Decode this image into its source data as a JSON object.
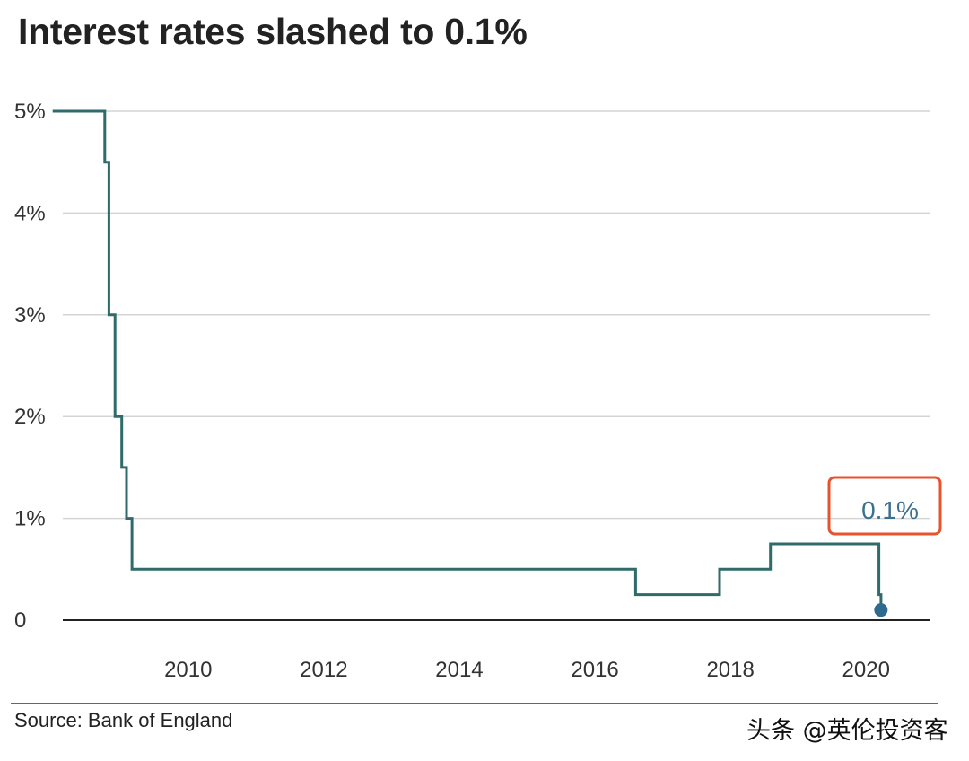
{
  "chart_data": {
    "type": "line",
    "title": "Interest rates slashed to 0.1%",
    "source": "Source: Bank of England",
    "line_style": "step",
    "xlim": [
      2008.15,
      2020.95
    ],
    "ylim": [
      0,
      5
    ],
    "x_ticks": [
      2010,
      2012,
      2014,
      2016,
      2018,
      2020
    ],
    "x_tick_labels": [
      "2010",
      "2012",
      "2014",
      "2016",
      "2018",
      "2020"
    ],
    "y_ticks": [
      0,
      1,
      2,
      3,
      4,
      5
    ],
    "y_tick_labels": [
      "0",
      "1%",
      "2%",
      "3%",
      "4%",
      "5%"
    ],
    "grid": true,
    "line_color": "#2e6b6a",
    "end_marker_color": "#2f6b8f",
    "annotation": {
      "text": "0.1%",
      "color": "#3a6f8f",
      "box_color": "#e8532c",
      "x": 2020.0,
      "y": 1.0
    },
    "series": [
      {
        "points": [
          [
            2008.0,
            5.0
          ],
          [
            2008.77,
            4.5
          ],
          [
            2008.83,
            3.0
          ],
          [
            2008.92,
            2.0
          ],
          [
            2009.02,
            1.5
          ],
          [
            2009.09,
            1.0
          ],
          [
            2009.17,
            0.5
          ],
          [
            2016.6,
            0.25
          ],
          [
            2017.84,
            0.5
          ],
          [
            2018.59,
            0.75
          ],
          [
            2020.19,
            0.25
          ],
          [
            2020.22,
            0.1
          ]
        ],
        "end_x": 2020.22
      }
    ]
  },
  "watermark": "头条 @英伦投资客"
}
